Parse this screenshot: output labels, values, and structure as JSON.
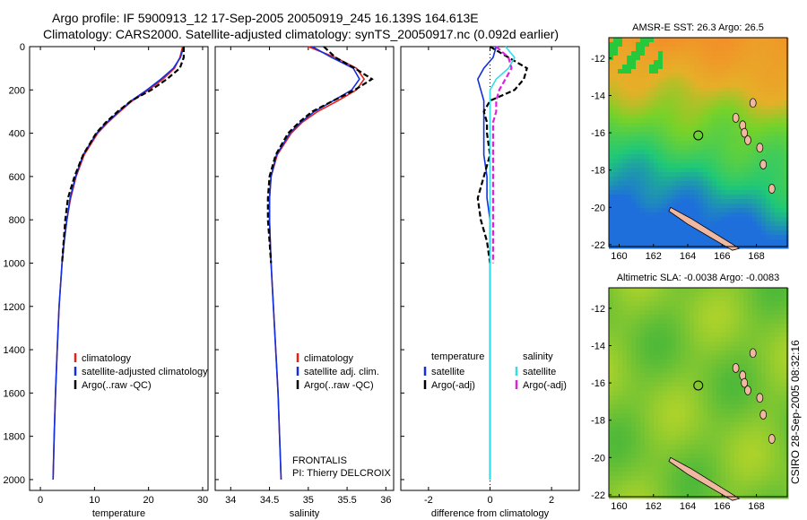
{
  "header": {
    "line1": "Argo profile: IF 5900913_12 17-Sep-2005 20050919_245 16.139S 164.613E",
    "line2": "Climatology: CARS2000. Satellite-adjusted climatology: synTS_20050917.nc (0.092d earlier)"
  },
  "side_stamp": "CSIRO 28-Sep-2005 08:32:16",
  "colors": {
    "climatology": "#e8201c",
    "satellite": "#1030e0",
    "argo": "#000000",
    "sal_satellite": "#33dde8",
    "sal_argo": "#e020e0",
    "map_island": "#f0b8a0"
  },
  "chart_data": [
    {
      "type": "line",
      "xlabel": "temperature",
      "ylabel": "",
      "xlim": [
        -2,
        31
      ],
      "ylim": [
        2050,
        0
      ],
      "xticks": [
        0,
        10,
        20,
        30
      ],
      "yticks": [
        0,
        200,
        400,
        600,
        800,
        1000,
        1200,
        1400,
        1600,
        1800,
        2000
      ],
      "depth": [
        0,
        50,
        100,
        150,
        200,
        250,
        300,
        350,
        400,
        500,
        600,
        700,
        800,
        900,
        1000,
        1200,
        1400,
        1600,
        1800,
        2000
      ],
      "series": [
        {
          "name": "climatology",
          "style": "solid",
          "color": "#e8201c",
          "values": [
            26.3,
            25.8,
            24.8,
            22.7,
            20.0,
            17.0,
            14.7,
            12.5,
            10.6,
            8.1,
            6.6,
            5.6,
            4.9,
            4.4,
            4.0,
            3.45,
            3.1,
            2.8,
            2.55,
            2.35
          ]
        },
        {
          "name": "satellite-adjusted climatology",
          "style": "solid",
          "color": "#1030e0",
          "values": [
            26.5,
            25.9,
            24.6,
            22.3,
            19.7,
            16.8,
            14.5,
            12.3,
            10.4,
            7.9,
            6.5,
            5.5,
            4.9,
            4.4,
            4.0,
            3.45,
            3.1,
            2.8,
            2.55,
            2.35
          ]
        },
        {
          "name": "Argo(..raw -QC)",
          "style": "dashed",
          "color": "#000000",
          "values": [
            26.5,
            26.5,
            25.8,
            23.4,
            20.5,
            16.8,
            14.3,
            12.1,
            10.3,
            7.9,
            6.3,
            5.1,
            4.6,
            4.3,
            4.0,
            null,
            null,
            null,
            null,
            null
          ]
        }
      ],
      "legend": {
        "placement": "bottom",
        "entries": [
          "climatology",
          "satellite-adjusted climatology",
          "Argo(..raw -QC)"
        ]
      }
    },
    {
      "type": "line",
      "xlabel": "salinity",
      "xlim": [
        33.8,
        36.1
      ],
      "ylim": [
        2050,
        0
      ],
      "xticks": [
        34,
        34.5,
        35,
        35.5,
        36
      ],
      "depth": [
        0,
        50,
        100,
        150,
        200,
        250,
        300,
        350,
        400,
        500,
        600,
        700,
        800,
        900,
        1000,
        1200,
        1400,
        1600,
        1800,
        2000
      ],
      "series": [
        {
          "name": "climatology",
          "style": "solid",
          "color": "#e8201c",
          "values": [
            35.0,
            35.35,
            35.62,
            35.72,
            35.62,
            35.38,
            35.12,
            34.92,
            34.78,
            34.6,
            34.52,
            34.5,
            34.5,
            34.51,
            34.52,
            34.55,
            34.58,
            34.61,
            34.63,
            34.65
          ]
        },
        {
          "name": "satellite adj. clim.",
          "style": "solid",
          "color": "#1030e0",
          "values": [
            35.05,
            35.3,
            35.58,
            35.66,
            35.56,
            35.32,
            35.08,
            34.9,
            34.76,
            34.59,
            34.52,
            34.5,
            34.5,
            34.51,
            34.52,
            34.55,
            34.58,
            34.61,
            34.63,
            34.65
          ]
        },
        {
          "name": "Argo(..raw -QC)",
          "style": "dashed",
          "color": "#000000",
          "values": [
            35.2,
            35.35,
            35.6,
            35.82,
            35.6,
            35.32,
            35.05,
            34.88,
            34.74,
            34.58,
            34.5,
            34.48,
            34.48,
            34.5,
            34.52,
            null,
            null,
            null,
            null,
            null
          ]
        }
      ],
      "legend": {
        "placement": "bottom",
        "entries": [
          "climatology",
          "satellite adj. clim.",
          "Argo(..raw -QC)"
        ]
      },
      "annotation": [
        "FRONTALIS",
        "PI: Thierry DELCROIX"
      ]
    },
    {
      "type": "line",
      "xlabel": "difference from climatology",
      "xlim": [
        -2.9,
        2.9
      ],
      "ylim": [
        2050,
        0
      ],
      "xticks": [
        -2,
        0,
        2
      ],
      "depth": [
        0,
        50,
        100,
        150,
        200,
        250,
        300,
        350,
        400,
        500,
        600,
        700,
        800,
        900,
        1000,
        1200,
        1400,
        1600,
        1800,
        2000
      ],
      "series": [
        {
          "name": "temperature satellite",
          "style": "solid",
          "color": "#1030e0",
          "values": [
            0.2,
            0.1,
            -0.2,
            -0.4,
            -0.3,
            -0.2,
            -0.2,
            -0.2,
            -0.2,
            -0.2,
            -0.1,
            -0.1,
            0.0,
            0.0,
            0.0,
            0.0,
            0.0,
            0.0,
            0.0,
            0.0
          ]
        },
        {
          "name": "temperature Argo(-adj)",
          "style": "dashed",
          "color": "#000000",
          "values": [
            0.0,
            0.6,
            1.2,
            1.1,
            0.8,
            0.0,
            -0.2,
            -0.1,
            -0.1,
            0.0,
            -0.2,
            -0.4,
            -0.3,
            -0.1,
            0.0,
            null,
            null,
            null,
            null,
            null
          ]
        },
        {
          "name": "salinity satellite",
          "style": "solid",
          "color": "#33dde8",
          "values": [
            0.5,
            0.8,
            0.6,
            0.2,
            0.0,
            0.0,
            0.0,
            0.0,
            0.0,
            0.0,
            0.0,
            0.0,
            0.0,
            0.0,
            0.0,
            0.0,
            0.0,
            0.0,
            0.0,
            0.0
          ]
        },
        {
          "name": "salinity Argo(-adj)",
          "style": "dashed",
          "color": "#e020e0",
          "values": [
            0.2,
            0.6,
            0.7,
            0.5,
            0.3,
            0.2,
            0.2,
            0.1,
            0.1,
            0.1,
            0.1,
            0.1,
            0.1,
            0.1,
            0.1,
            null,
            null,
            null,
            null,
            null
          ]
        }
      ],
      "legend": {
        "placement": "bottom",
        "col1_title": "temperature",
        "col2_title": "salinity",
        "entries": [
          "satellite",
          "Argo(-adj)",
          "satellite",
          "Argo(-adj)"
        ]
      }
    },
    {
      "type": "heatmap",
      "title": "AMSR-E SST: 26.3  Argo: 26.5",
      "xticks": [
        160,
        162,
        164,
        166,
        168
      ],
      "yticks": [
        -12,
        -14,
        -16,
        -18,
        -20,
        -22
      ],
      "xlim": [
        159.4,
        169.8
      ],
      "ylim": [
        -22.1,
        -10.9
      ],
      "profile_location": [
        164.613,
        -16.139
      ]
    },
    {
      "type": "heatmap",
      "title": "Altimetric SLA: -0.0038  Argo: -0.0083",
      "xticks": [
        160,
        162,
        164,
        166,
        168
      ],
      "yticks": [
        -12,
        -14,
        -16,
        -18,
        -20,
        -22
      ],
      "xlim": [
        159.4,
        169.8
      ],
      "ylim": [
        -22.1,
        -10.9
      ],
      "profile_location": [
        164.613,
        -16.139
      ]
    }
  ]
}
